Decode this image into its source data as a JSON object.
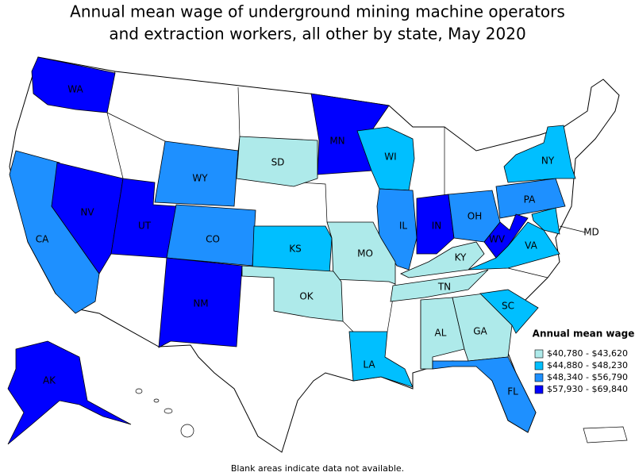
{
  "title_lines": [
    "Annual mean wage of underground mining machine operators",
    "and extraction workers, all other by state, May 2020"
  ],
  "states": [
    {
      "label": "WA",
      "color": "#0000ff"
    },
    {
      "label": "CA",
      "color": "#1e90ff"
    },
    {
      "label": "NV",
      "color": "#0000ff"
    },
    {
      "label": "UT",
      "color": "#0000ff"
    },
    {
      "label": "WY",
      "color": "#1e90ff"
    },
    {
      "label": "CO",
      "color": "#1e90ff"
    },
    {
      "label": "NM",
      "color": "#0000ff"
    },
    {
      "label": "SD",
      "color": "#aeeaea"
    },
    {
      "label": "MN",
      "color": "#0000ff"
    },
    {
      "label": "WI",
      "color": "#00bfff"
    },
    {
      "label": "IL",
      "color": "#1e90ff"
    },
    {
      "label": "IN",
      "color": "#0000ff"
    },
    {
      "label": "OH",
      "color": "#1e90ff"
    },
    {
      "label": "KY",
      "color": "#aeeaea"
    },
    {
      "label": "TN",
      "color": "#aeeaea"
    },
    {
      "label": "AL",
      "color": "#aeeaea"
    },
    {
      "label": "GA",
      "color": "#aeeaea"
    },
    {
      "label": "FL",
      "color": "#1e90ff"
    },
    {
      "label": "SC",
      "color": "#00bfff"
    },
    {
      "label": "LA",
      "color": "#00bfff"
    },
    {
      "label": "KS",
      "color": "#00bfff"
    },
    {
      "label": "MO",
      "color": "#aeeaea"
    },
    {
      "label": "OK",
      "color": "#aeeaea"
    },
    {
      "label": "PA",
      "color": "#1e90ff"
    },
    {
      "label": "NY",
      "color": "#00bfff"
    },
    {
      "label": "WV",
      "color": "#0000ff"
    },
    {
      "label": "VA",
      "color": "#00bfff"
    },
    {
      "label": "MD",
      "color": "#00bfff"
    },
    {
      "label": "AK",
      "color": "#0000ff"
    }
  ],
  "legend": {
    "title": "Annual mean wage",
    "items": [
      {
        "label": "$40,780 - $43,620",
        "color": "#aeeaea"
      },
      {
        "label": "$44,880 - $48,230",
        "color": "#00bfff"
      },
      {
        "label": "$48,340 - $56,790",
        "color": "#1e90ff"
      },
      {
        "label": "$57,930 - $69,840",
        "color": "#0000ff"
      }
    ]
  },
  "footnote": "Blank areas indicate data not available."
}
